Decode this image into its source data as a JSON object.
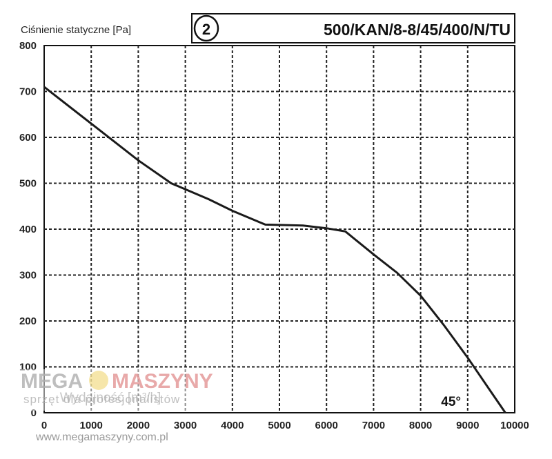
{
  "chart_data": {
    "type": "line",
    "ylabel": "Ciśnienie statyczne [Pa]",
    "xlabel": "Wydajność [m³/h]",
    "curve_number": "2",
    "model": "500/KAN/8-8/45/400/N/TU",
    "blade_angle": "45°",
    "xlim": [
      0,
      10000
    ],
    "ylim": [
      0,
      800
    ],
    "x_ticks": [
      "0",
      "1000",
      "2000",
      "3000",
      "4000",
      "5000",
      "6000",
      "7000",
      "8000",
      "9000",
      "10000"
    ],
    "y_ticks": [
      "0",
      "100",
      "200",
      "300",
      "400",
      "500",
      "600",
      "700",
      "800"
    ],
    "grid": true,
    "series": [
      {
        "x": [
          0,
          1000,
          2000,
          2700,
          3500,
          4000,
          4700,
          5500,
          6000,
          6400,
          7000,
          7500,
          8000,
          8500,
          9000,
          9500,
          9800
        ],
        "values": [
          710,
          630,
          550,
          500,
          465,
          440,
          410,
          408,
          402,
          395,
          345,
          305,
          255,
          190,
          120,
          45,
          0
        ]
      }
    ]
  },
  "watermark": {
    "mega": "MEGA",
    "maszyny": "MASZYNY",
    "tagline": "sprzęt dla profesjonalistów",
    "url": "www.megamaszyny.com.pl"
  }
}
